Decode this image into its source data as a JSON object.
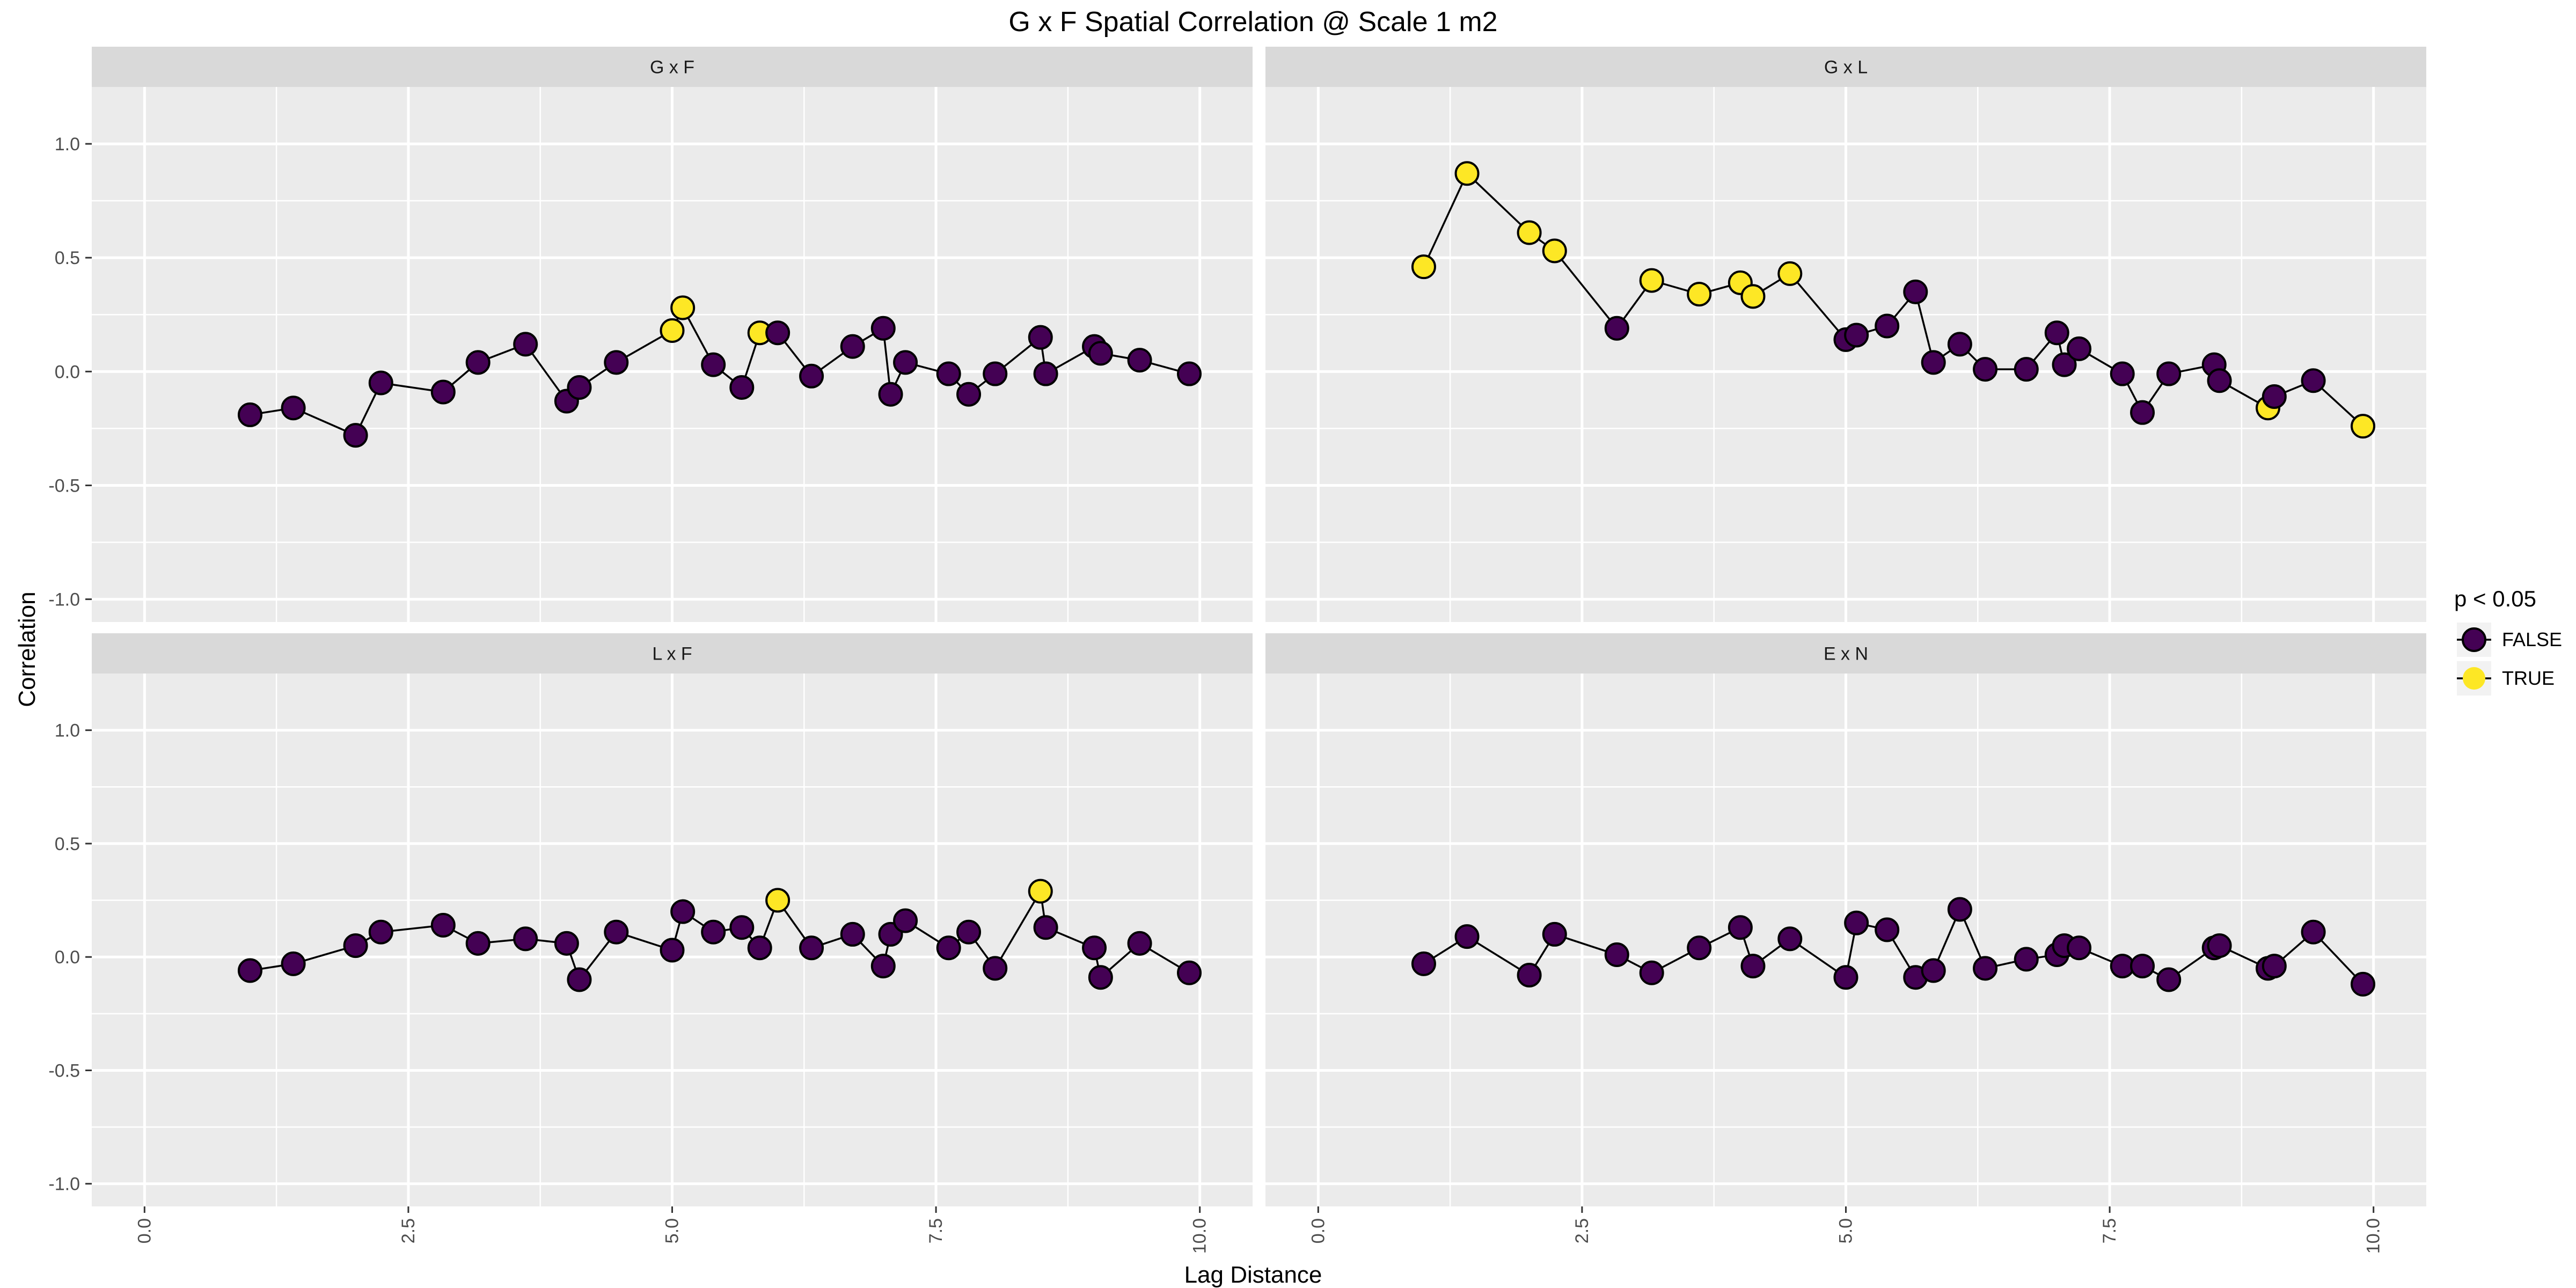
{
  "chart_data": {
    "type": "scatter",
    "title": "G x F Spatial Correlation @ Scale 1 m2",
    "xlabel": "Lag Distance",
    "ylabel": "Correlation",
    "xlim": [
      -0.5,
      10.5
    ],
    "ylim": [
      -1.1,
      1.25
    ],
    "xticks": [
      0.0,
      2.5,
      5.0,
      7.5,
      10.0
    ],
    "xtick_labels": [
      "0.0",
      "2.5",
      "5.0",
      "7.5",
      "10.0"
    ],
    "yticks": [
      -1.0,
      -0.5,
      0.0,
      0.5,
      1.0
    ],
    "ytick_labels": [
      "-1.0",
      "-0.5",
      "0.0",
      "0.5",
      "1.0"
    ],
    "grid": true,
    "legend": {
      "title": "p < 0.05",
      "position": "right",
      "entries": [
        {
          "label": "FALSE",
          "color": "#440154"
        },
        {
          "label": "TRUE",
          "color": "#FDE725"
        }
      ]
    },
    "panels": [
      {
        "label": "G x F",
        "x": [
          1.0,
          1.41,
          2.0,
          2.24,
          2.83,
          3.0,
          3.16,
          3.61,
          4.0,
          4.12,
          4.47,
          5.0,
          5.1,
          5.39,
          5.66,
          5.83,
          6.0,
          6.32,
          6.4,
          6.71,
          7.0,
          7.07,
          7.21,
          7.62,
          7.81,
          8.06,
          8.49,
          8.54,
          9.0,
          9.06,
          9.43,
          9.9
        ],
        "y": [
          -0.19,
          -0.16,
          -0.28,
          -0.05,
          -0.09,
          null,
          0.04,
          0.12,
          -0.13,
          -0.07,
          0.04,
          0.18,
          0.28,
          0.03,
          -0.07,
          0.17,
          0.17,
          -0.02,
          null,
          0.11,
          0.19,
          -0.1,
          0.04,
          -0.01,
          -0.1,
          -0.01,
          0.15,
          -0.01,
          0.11,
          0.08,
          0.05,
          -0.01
        ],
        "significant": [
          false,
          false,
          false,
          false,
          false,
          false,
          false,
          false,
          false,
          false,
          false,
          true,
          true,
          false,
          false,
          true,
          false,
          false,
          false,
          false,
          false,
          false,
          false,
          false,
          false,
          false,
          false,
          false,
          false,
          false,
          false,
          false
        ]
      },
      {
        "label": "G x L",
        "x": [
          1.0,
          1.41,
          2.0,
          2.24,
          2.83,
          3.16,
          3.61,
          4.0,
          4.12,
          4.47,
          5.0,
          5.1,
          5.39,
          5.66,
          5.83,
          6.08,
          6.32,
          6.71,
          7.0,
          7.07,
          7.21,
          7.62,
          7.81,
          8.06,
          8.49,
          8.54,
          9.0,
          9.06,
          9.43,
          9.9
        ],
        "y": [
          0.46,
          0.87,
          0.61,
          0.53,
          0.19,
          0.4,
          0.34,
          0.39,
          0.33,
          0.43,
          0.14,
          0.16,
          0.2,
          0.35,
          0.04,
          0.12,
          0.01,
          0.01,
          0.17,
          0.03,
          0.1,
          -0.01,
          -0.18,
          -0.01,
          0.03,
          -0.04,
          -0.16,
          -0.11,
          -0.04,
          -0.24
        ],
        "significant": [
          true,
          true,
          true,
          true,
          false,
          true,
          true,
          true,
          true,
          true,
          false,
          false,
          false,
          false,
          false,
          false,
          false,
          false,
          false,
          false,
          false,
          false,
          false,
          false,
          false,
          false,
          true,
          false,
          false,
          true
        ]
      },
      {
        "label": "L x F",
        "x": [
          1.0,
          1.41,
          2.0,
          2.24,
          2.83,
          3.16,
          3.61,
          4.0,
          4.12,
          4.47,
          5.0,
          5.1,
          5.39,
          5.66,
          5.83,
          6.0,
          6.32,
          6.71,
          7.0,
          7.07,
          7.21,
          7.62,
          7.81,
          8.06,
          8.49,
          8.54,
          9.0,
          9.06,
          9.43,
          9.9
        ],
        "y": [
          -0.06,
          -0.03,
          0.05,
          0.11,
          0.14,
          0.06,
          0.08,
          0.06,
          -0.1,
          0.11,
          0.03,
          0.2,
          0.11,
          0.13,
          0.04,
          0.25,
          0.04,
          0.1,
          -0.04,
          0.1,
          0.16,
          0.04,
          0.11,
          -0.05,
          0.29,
          0.13,
          0.04,
          -0.09,
          0.06,
          -0.07
        ],
        "significant": [
          false,
          false,
          false,
          false,
          false,
          false,
          false,
          false,
          false,
          false,
          false,
          false,
          false,
          false,
          false,
          true,
          false,
          false,
          false,
          false,
          false,
          false,
          false,
          false,
          true,
          false,
          false,
          false,
          false,
          false
        ]
      },
      {
        "label": "E x N",
        "x": [
          1.0,
          1.41,
          2.0,
          2.24,
          2.83,
          3.16,
          3.61,
          4.0,
          4.12,
          4.47,
          5.0,
          5.1,
          5.39,
          5.66,
          5.83,
          6.08,
          6.32,
          6.71,
          7.0,
          7.07,
          7.21,
          7.62,
          7.81,
          8.06,
          8.49,
          8.54,
          9.0,
          9.06,
          9.43,
          9.9
        ],
        "y": [
          -0.03,
          0.09,
          -0.08,
          0.1,
          0.01,
          -0.07,
          0.04,
          0.13,
          -0.04,
          0.08,
          -0.09,
          0.15,
          0.12,
          -0.09,
          -0.06,
          0.21,
          -0.05,
          -0.01,
          0.01,
          0.05,
          0.04,
          -0.04,
          -0.04,
          -0.1,
          0.04,
          0.05,
          -0.05,
          -0.04,
          0.11,
          -0.12
        ],
        "significant": [
          false,
          false,
          false,
          false,
          false,
          false,
          false,
          false,
          false,
          false,
          false,
          false,
          false,
          false,
          false,
          false,
          false,
          false,
          false,
          false,
          false,
          false,
          false,
          false,
          false,
          false,
          false,
          false,
          false,
          false
        ]
      }
    ]
  }
}
